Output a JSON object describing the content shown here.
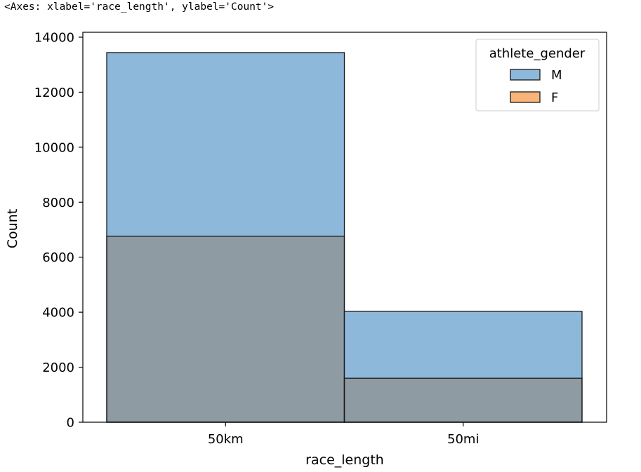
{
  "output_repr": "<Axes: xlabel='race_length', ylabel='Count'>",
  "chart_data": {
    "type": "bar",
    "categories": [
      "50km",
      "50mi"
    ],
    "series": [
      {
        "name": "M",
        "values": [
          13440,
          4030
        ],
        "color": "#1f77b4"
      },
      {
        "name": "F",
        "values": [
          6760,
          1600
        ],
        "color": "#ff7f0e"
      }
    ],
    "overlap_color": "#8e9ba2",
    "m_fill": "#8db8da",
    "f_fill": "#f9b47a",
    "xlabel": "race_length",
    "ylabel": "Count",
    "ylim": [
      0,
      14000
    ],
    "yticks": [
      0,
      2000,
      4000,
      6000,
      8000,
      10000,
      12000,
      14000
    ],
    "legend": {
      "title": "athlete_gender",
      "placement": "upper-right"
    },
    "grid": false
  }
}
